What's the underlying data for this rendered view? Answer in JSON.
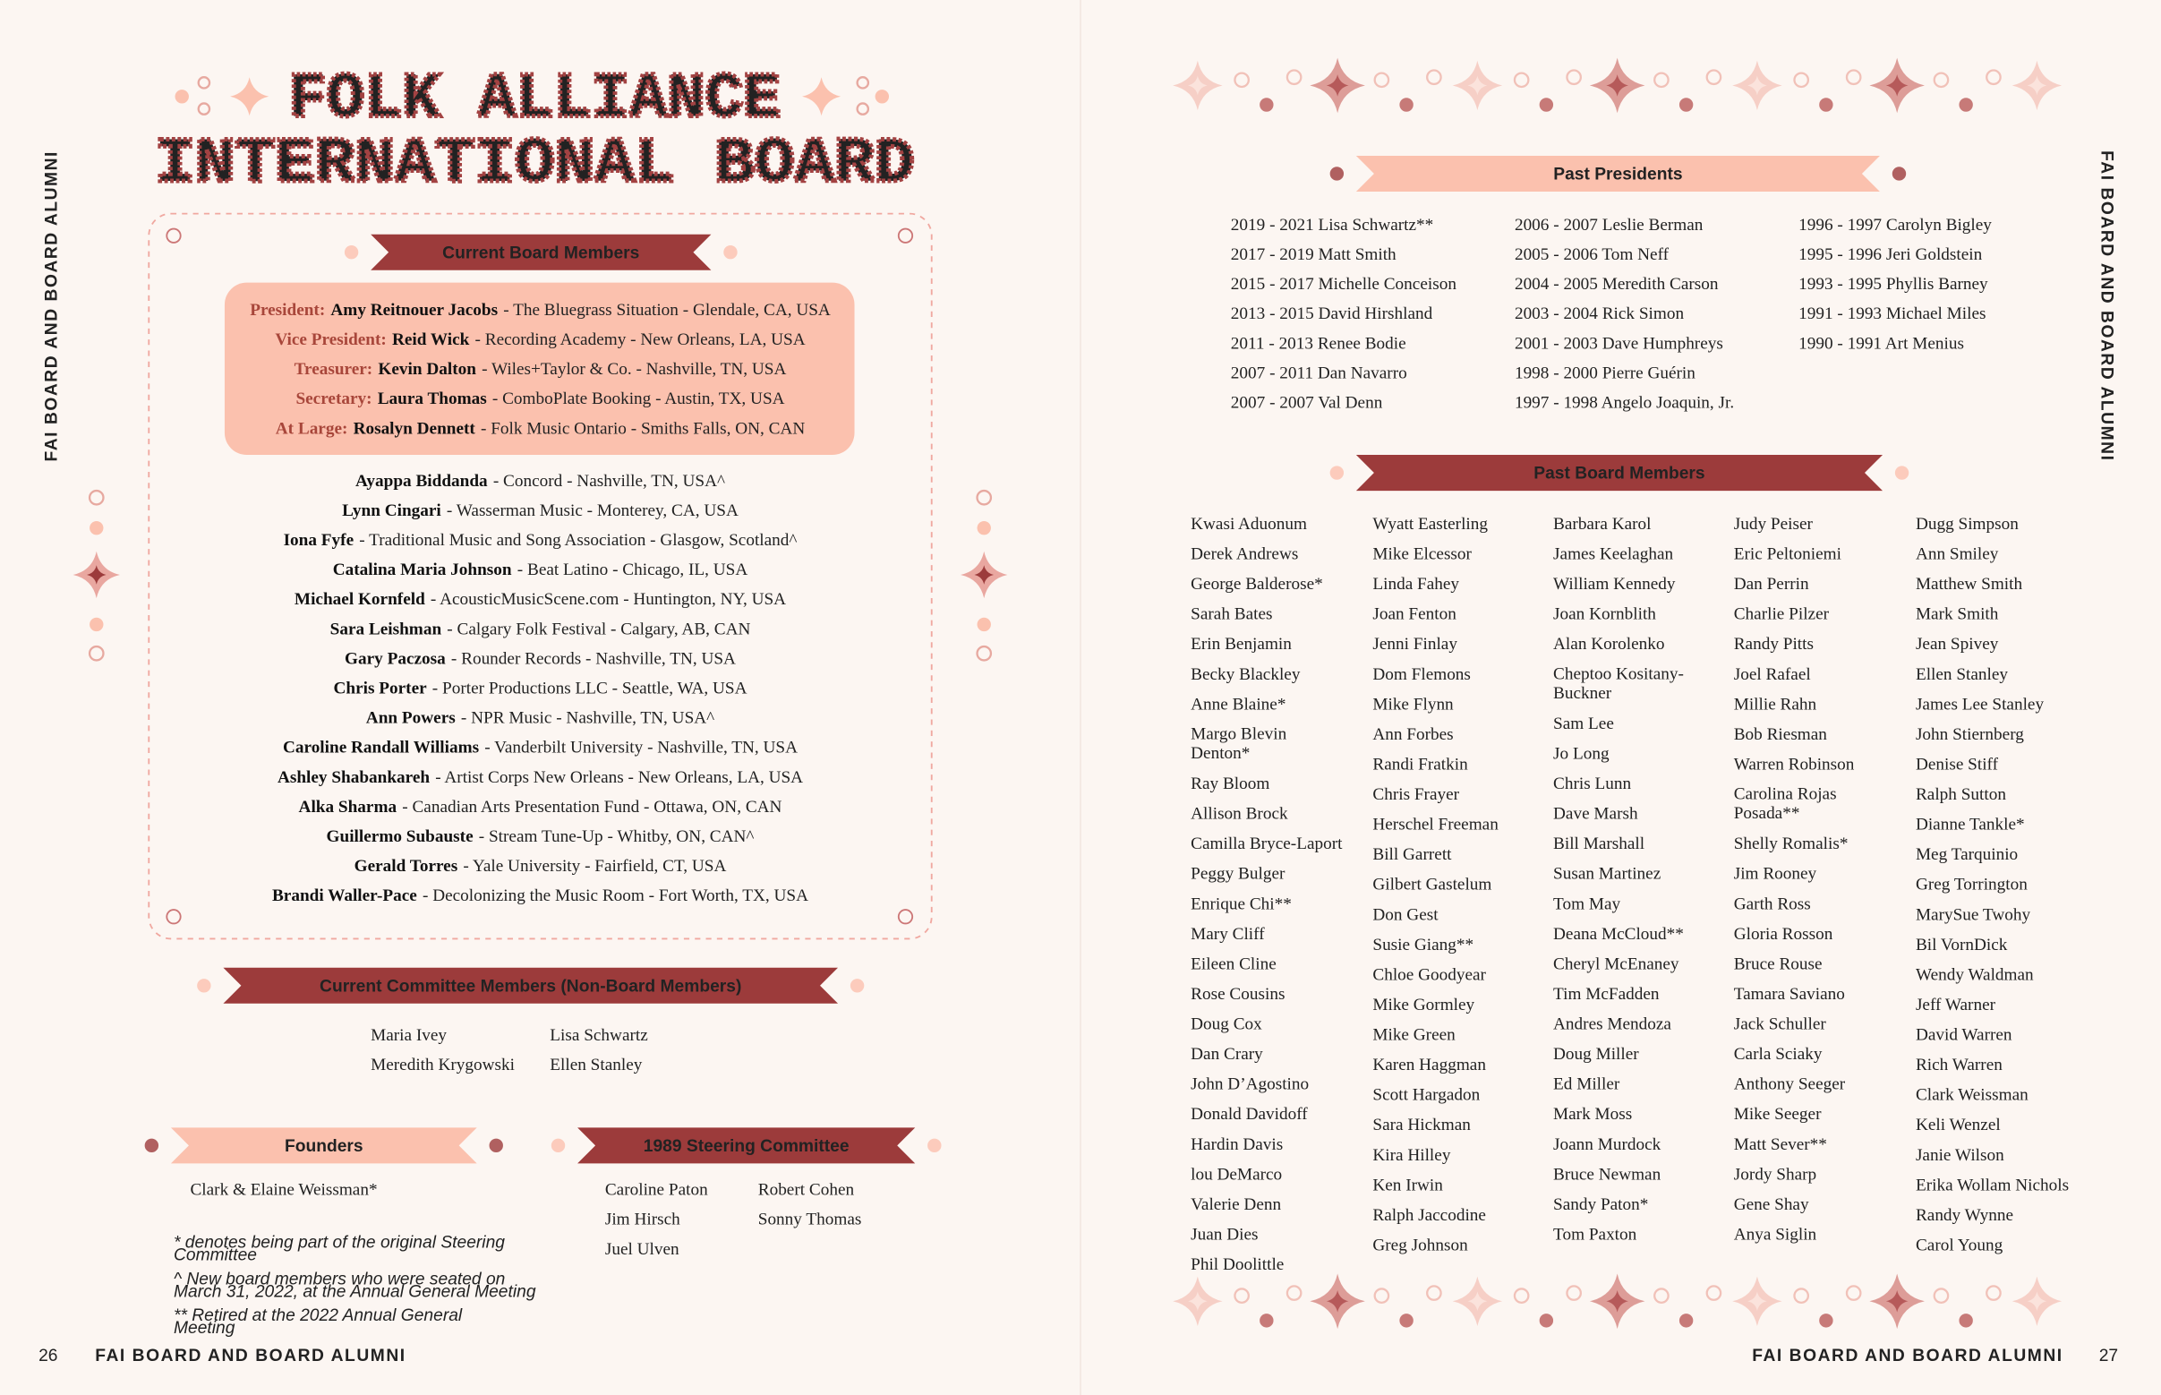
{
  "left_page": {
    "side_label": "FAI BOARD AND BOARD ALUMNI",
    "title": [
      "FOLK ALLIANCE",
      "INTERNATIONAL BOARD"
    ],
    "current_board": {
      "heading": "Current Board Members",
      "officers": [
        {
          "role": "President:",
          "name": "Amy Reitnouer Jacobs",
          "detail": "- The Bluegrass Situation - Glendale, CA, USA"
        },
        {
          "role": "Vice President:",
          "name": "Reid Wick",
          "detail": "- Recording Academy - New Orleans, LA, USA"
        },
        {
          "role": "Treasurer:",
          "name": "Kevin Dalton",
          "detail": "- Wiles+Taylor & Co. - Nashville, TN, USA"
        },
        {
          "role": "Secretary:",
          "name": "Laura Thomas",
          "detail": "- ComboPlate Booking - Austin, TX, USA"
        },
        {
          "role": "At Large:",
          "name": "Rosalyn Dennett",
          "detail": "- Folk Music Ontario - Smiths Falls, ON, CAN"
        }
      ],
      "members": [
        {
          "name": "Ayappa Biddanda",
          "detail": "- Concord - Nashville, TN, USA^"
        },
        {
          "name": "Lynn Cingari",
          "detail": "- Wasserman Music - Monterey, CA, USA"
        },
        {
          "name": "Iona Fyfe",
          "detail": "- Traditional Music and Song Association - Glasgow, Scotland^"
        },
        {
          "name": "Catalina Maria Johnson",
          "detail": "- Beat Latino - Chicago, IL, USA"
        },
        {
          "name": "Michael Kornfeld",
          "detail": "- AcousticMusicScene.com - Huntington, NY, USA"
        },
        {
          "name": "Sara Leishman",
          "detail": "- Calgary Folk Festival - Calgary, AB, CAN"
        },
        {
          "name": "Gary Paczosa",
          "detail": "- Rounder Records - Nashville, TN, USA"
        },
        {
          "name": "Chris Porter",
          "detail": "- Porter Productions LLC - Seattle, WA, USA"
        },
        {
          "name": "Ann Powers",
          "detail": "- NPR Music - Nashville, TN, USA^"
        },
        {
          "name": "Caroline Randall Williams",
          "detail": "- Vanderbilt University - Nashville, TN, USA"
        },
        {
          "name": "Ashley Shabankareh",
          "detail": "- Artist Corps New Orleans - New Orleans, LA, USA"
        },
        {
          "name": "Alka Sharma",
          "detail": "- Canadian Arts Presentation Fund - Ottawa, ON, CAN"
        },
        {
          "name": "Guillermo Subauste",
          "detail": "- Stream Tune-Up - Whitby, ON, CAN^"
        },
        {
          "name": "Gerald Torres",
          "detail": "- Yale University - Fairfield, CT, USA"
        },
        {
          "name": "Brandi Waller-Pace",
          "detail": "- Decolonizing the Music Room - Fort Worth, TX, USA"
        }
      ]
    },
    "committee": {
      "heading": "Current Committee Members (Non-Board Members)",
      "columns": [
        [
          "Maria Ivey",
          "Meredith Krygowski"
        ],
        [
          "Lisa Schwartz",
          "Ellen Stanley"
        ]
      ]
    },
    "founders": {
      "heading": "Founders",
      "names": [
        "Clark & Elaine Weissman*"
      ]
    },
    "steering": {
      "heading": "1989 Steering Committee",
      "columns": [
        [
          "Caroline Paton",
          "Jim Hirsch",
          "Juel Ulven"
        ],
        [
          "Robert Cohen",
          "Sonny Thomas"
        ]
      ]
    },
    "footnotes": [
      "* denotes being part of the original Steering Committee",
      "^ New board members who were seated on March 31, 2022, at the Annual General Meeting",
      "** Retired at the 2022 Annual General Meeting"
    ],
    "footer": {
      "page": "26",
      "label": "FAI BOARD AND BOARD ALUMNI"
    }
  },
  "right_page": {
    "side_label": "FAI BOARD AND BOARD ALUMNI",
    "past_presidents": {
      "heading": "Past Presidents",
      "columns": [
        [
          "2019 - 2021 Lisa Schwartz**",
          "2017 - 2019 Matt Smith",
          "2015 - 2017 Michelle Conceison",
          "2013 - 2015 David Hirshland",
          "2011 - 2013 Renee Bodie",
          "2007 - 2011 Dan Navarro",
          "2007 - 2007 Val Denn"
        ],
        [
          "2006 - 2007 Leslie Berman",
          "2005 - 2006 Tom Neff",
          "2004 - 2005 Meredith Carson",
          "2003 - 2004 Rick Simon",
          "2001 - 2003 Dave Humphreys",
          "1998 - 2000 Pierre Guérin",
          "1997 - 1998 Angelo Joaquin, Jr."
        ],
        [
          "1996 - 1997 Carolyn Bigley",
          "1995 - 1996 Jeri Goldstein",
          "1993 - 1995 Phyllis Barney",
          "1991 - 1993 Michael Miles",
          "1990 - 1991 Art Menius"
        ]
      ]
    },
    "past_board": {
      "heading": "Past Board Members",
      "columns": [
        [
          "Kwasi Aduonum",
          "Derek Andrews",
          "George Balderose*",
          "Sarah Bates",
          "Erin Benjamin",
          "Becky Blackley",
          "Anne Blaine*",
          "Margo Blevin Denton*",
          "Ray Bloom",
          "Allison Brock",
          "Camilla Bryce-Laport",
          "Peggy Bulger",
          "Enrique Chi**",
          "Mary Cliff",
          "Eileen Cline",
          "Rose Cousins",
          "Doug Cox",
          "Dan Crary",
          "John D’Agostino",
          "Donald Davidoff",
          "Hardin Davis",
          "lou DeMarco",
          "Valerie Denn",
          "Juan Dies",
          "Phil Doolittle"
        ],
        [
          "Wyatt Easterling",
          "Mike Elcessor",
          "Linda Fahey",
          "Joan Fenton",
          "Jenni Finlay",
          "Dom Flemons",
          "Mike Flynn",
          "Ann Forbes",
          "Randi Fratkin",
          "Chris Frayer",
          "Herschel Freeman",
          "Bill Garrett",
          "Gilbert Gastelum",
          "Don Gest",
          "Susie Giang**",
          "Chloe Goodyear",
          "Mike Gormley",
          "Mike Green",
          "Karen Haggman",
          "Scott Hargadon",
          "Sara Hickman",
          "Kira Hilley",
          "Ken Irwin",
          "Ralph Jaccodine",
          "Greg Johnson"
        ],
        [
          "Barbara Karol",
          "James Keelaghan",
          "William Kennedy",
          "Joan Kornblith",
          "Alan Korolenko",
          "Cheptoo Kositany-Buckner",
          "Sam Lee",
          "Jo Long",
          "Chris Lunn",
          "Dave Marsh",
          "Bill Marshall",
          "Susan Martinez",
          "Tom May",
          "Deana McCloud**",
          "Cheryl McEnaney",
          "Tim McFadden",
          "Andres Mendoza",
          "Doug Miller",
          "Ed Miller",
          "Mark Moss",
          "Joann Murdock",
          "Bruce Newman",
          "Sandy Paton*",
          "Tom Paxton"
        ],
        [
          "Judy Peiser",
          "Eric Peltoniemi",
          "Dan Perrin",
          "Charlie Pilzer",
          "Randy Pitts",
          "Joel Rafael",
          "Millie Rahn",
          "Bob Riesman",
          "Warren Robinson",
          "Carolina Rojas Posada**",
          "Shelly Romalis*",
          "Jim Rooney",
          "Garth Ross",
          "Gloria Rosson",
          "Bruce Rouse",
          "Tamara Saviano",
          "Jack Schuller",
          "Carla Sciaky",
          "Anthony Seeger",
          "Mike Seeger",
          "Matt Sever**",
          "Jordy Sharp",
          "Gene Shay",
          "Anya Siglin"
        ],
        [
          "Dugg Simpson",
          "Ann Smiley",
          "Matthew Smith",
          "Mark Smith",
          "Jean Spivey",
          "Ellen Stanley",
          "James Lee Stanley",
          "John Stiernberg",
          "Denise Stiff",
          "Ralph Sutton",
          "Dianne Tankle*",
          "Meg Tarquinio",
          "Greg Torrington",
          "MarySue Twohy",
          "Bil VornDick",
          "Wendy Waldman",
          "Jeff Warner",
          "David Warren",
          "Rich Warren",
          "Clark Weissman",
          "Keli Wenzel",
          "Janie Wilson",
          "Erika Wollam Nichols",
          "Randy Wynne",
          "Carol Young"
        ]
      ]
    },
    "footer": {
      "page": "27",
      "label": "FAI BOARD AND BOARD ALUMNI"
    }
  }
}
